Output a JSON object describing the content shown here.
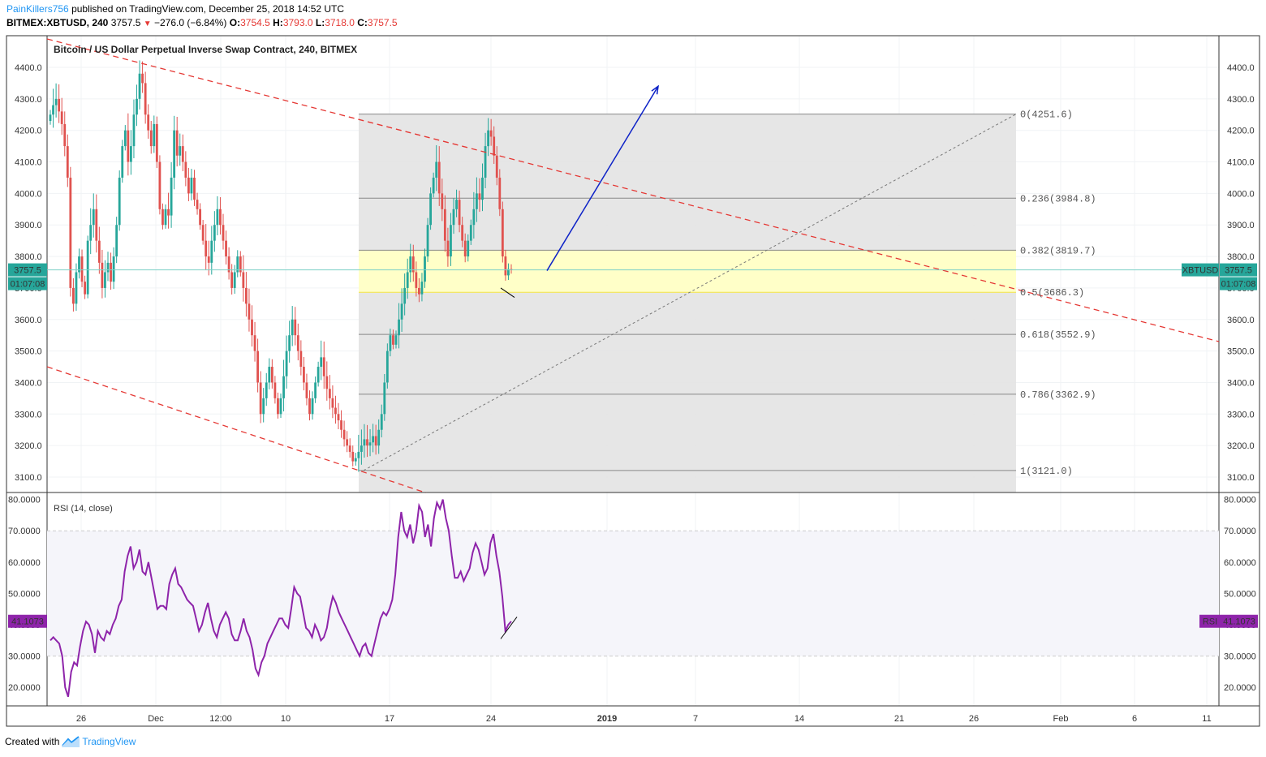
{
  "header": {
    "author": "PainKillers756",
    "published_text": "published on TradingView.com, December 25, 2018 14:52 UTC",
    "symbol_line": "BITMEX:XBTUSD, 240",
    "last_price": "3757.5",
    "change": "−276.0 (−6.84%)",
    "o_label": "O:",
    "o_value": "3754.5",
    "h_label": "H:",
    "h_value": "3793.0",
    "l_label": "L:",
    "l_value": "3718.0",
    "c_label": "C:",
    "c_value": "3757.5"
  },
  "footer": {
    "created_with": "Created with",
    "brand": "TradingView"
  },
  "colors": {
    "up": "#26a69a",
    "down": "#e0524f",
    "channel": "#e53935",
    "rsi": "#8e24aa",
    "arrow": "#0d22c7",
    "fib_zone": "#e3e3e3",
    "fib_highlight": "#ffffc8",
    "price_tag": "#26a69a"
  },
  "chart_data": [
    {
      "type": "candlestick",
      "title": "Bitcoin / US Dollar Perpetual Inverse Swap Contract, 240, BITMEX",
      "timeframe": "240",
      "ylim": [
        3050,
        4480
      ],
      "y_ticks": [
        "3100.0",
        "3200.0",
        "3300.0",
        "3400.0",
        "3500.0",
        "3600.0",
        "3700.0",
        "3800.0",
        "3900.0",
        "4000.0",
        "4100.0",
        "4200.0",
        "4300.0",
        "4400.0"
      ],
      "y_tick_values": [
        3100,
        3200,
        3300,
        3400,
        3500,
        3600,
        3700,
        3800,
        3900,
        4000,
        4100,
        4200,
        4300,
        4400
      ],
      "x_ticks": [
        "26",
        "Dec",
        "12:00",
        "10",
        "17",
        "24",
        "2019",
        "7",
        "14",
        "21",
        "26",
        "Feb",
        "6",
        "11"
      ],
      "current_price": {
        "value": 3757.5,
        "label": "3757.5",
        "countdown": "01:07:08",
        "symbol_tag": "XBTUSD"
      },
      "fibonacci": [
        {
          "ratio": "0",
          "price": 4251.6,
          "label": "0(4251.6)"
        },
        {
          "ratio": "0.236",
          "price": 3984.8,
          "label": "0.236(3984.8)"
        },
        {
          "ratio": "0.382",
          "price": 3819.7,
          "label": "0.382(3819.7)"
        },
        {
          "ratio": "0.5",
          "price": 3686.3,
          "label": "0.5(3686.3)"
        },
        {
          "ratio": "0.618",
          "price": 3552.9,
          "label": "0.618(3552.9)"
        },
        {
          "ratio": "0.786",
          "price": 3362.9,
          "label": "0.786(3362.9)"
        },
        {
          "ratio": "1",
          "price": 3121.0,
          "label": "1(3121.0)"
        }
      ],
      "channel_upper": {
        "from_price": 4490,
        "to_price": 3530
      },
      "channel_lower": {
        "from_price": 3450,
        "to_price": 3050
      },
      "projection_arrow": {
        "from_price": 3755,
        "to_price": 4340
      },
      "candles_close": [
        4250,
        4280,
        4300,
        4260,
        4220,
        4150,
        4050,
        3700,
        3650,
        3750,
        3800,
        3720,
        3680,
        3850,
        3900,
        3950,
        3850,
        3780,
        3700,
        3750,
        3780,
        3720,
        3800,
        3900,
        4050,
        4150,
        4200,
        4100,
        4150,
        4250,
        4300,
        4380,
        4350,
        4250,
        4200,
        4150,
        4220,
        4100,
        3950,
        3900,
        3950,
        3930,
        4050,
        4200,
        4120,
        4150,
        4100,
        4050,
        4000,
        4050,
        3980,
        3950,
        3900,
        3850,
        3800,
        3780,
        3850,
        3900,
        3950,
        3900,
        3850,
        3800,
        3750,
        3700,
        3750,
        3800,
        3750,
        3700,
        3650,
        3600,
        3550,
        3500,
        3400,
        3300,
        3350,
        3400,
        3450,
        3400,
        3350,
        3300,
        3350,
        3420,
        3500,
        3550,
        3600,
        3550,
        3500,
        3450,
        3400,
        3350,
        3300,
        3350,
        3400,
        3450,
        3480,
        3420,
        3380,
        3350,
        3320,
        3300,
        3280,
        3250,
        3220,
        3200,
        3180,
        3150,
        3160,
        3180,
        3200,
        3220,
        3200,
        3210,
        3230,
        3200,
        3250,
        3300,
        3400,
        3500,
        3550,
        3520,
        3550,
        3600,
        3650,
        3700,
        3750,
        3800,
        3750,
        3700,
        3680,
        3720,
        3800,
        3900,
        4000,
        4050,
        4100,
        4000,
        3950,
        3850,
        3800,
        3900,
        3950,
        3980,
        3900,
        3850,
        3800,
        3850,
        3900,
        3950,
        4000,
        3980,
        4050,
        4150,
        4200,
        4180,
        4120,
        4050,
        3950,
        3800,
        3740,
        3760,
        3757.5
      ],
      "rsi": {
        "title": "RSI (14, close)",
        "ylim": [
          15,
          82
        ],
        "y_ticks": [
          "20.0000",
          "30.0000",
          "40.0000",
          "50.0000",
          "60.0000",
          "70.0000",
          "80.0000"
        ],
        "y_tick_values": [
          20,
          30,
          40,
          50,
          60,
          70,
          80
        ],
        "band": [
          30,
          70
        ],
        "current": "41.1073",
        "tag": "RSI",
        "values": [
          35,
          36,
          35,
          34,
          30,
          20,
          17,
          25,
          28,
          27,
          33,
          38,
          41,
          40,
          37,
          31,
          38,
          36,
          35,
          38,
          37,
          40,
          42,
          46,
          48,
          57,
          62,
          65,
          58,
          60,
          64,
          57,
          56,
          60,
          55,
          50,
          45,
          46,
          46,
          45,
          53,
          56,
          58,
          53,
          52,
          50,
          48,
          47,
          46,
          42,
          38,
          40,
          44,
          47,
          42,
          38,
          36,
          40,
          42,
          44,
          42,
          37,
          35,
          35,
          38,
          42,
          38,
          36,
          32,
          26,
          24,
          28,
          30,
          34,
          36,
          38,
          40,
          42,
          42,
          40,
          39,
          45,
          52,
          50,
          49,
          44,
          39,
          38,
          36,
          40,
          38,
          35,
          36,
          39,
          45,
          49,
          47,
          44,
          42,
          40,
          38,
          36,
          34,
          32,
          30,
          33,
          34,
          31,
          30,
          34,
          38,
          42,
          44,
          43,
          45,
          48,
          56,
          68,
          76,
          70,
          68,
          72,
          66,
          70,
          78,
          76,
          68,
          72,
          65,
          74,
          79,
          77,
          80,
          74,
          70,
          62,
          55,
          55,
          57,
          54,
          56,
          58,
          63,
          66,
          64,
          60,
          56,
          58,
          66,
          69,
          62,
          57,
          49,
          38,
          40,
          41.1
        ]
      }
    }
  ]
}
